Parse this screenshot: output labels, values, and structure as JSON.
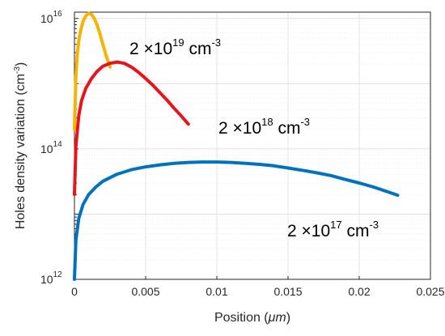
{
  "chart_data": {
    "type": "line",
    "xlabel_prefix": "Position (",
    "xlabel_unit": "μm",
    "xlabel_suffix": ")",
    "ylabel_main": "Holes density variation (cm",
    "ylabel_exp": "-3",
    "ylabel_end": ")",
    "xlim": [
      0,
      0.025
    ],
    "ylim": [
      1000000000000.0,
      1.25e+16
    ],
    "yscale": "log",
    "grid": true,
    "x_ticks": [
      {
        "value": 0,
        "label": "0"
      },
      {
        "value": 0.005,
        "label": "0.005"
      },
      {
        "value": 0.01,
        "label": "0.01"
      },
      {
        "value": 0.015,
        "label": "0.015"
      },
      {
        "value": 0.02,
        "label": "0.02"
      },
      {
        "value": 0.025,
        "label": "0.025"
      }
    ],
    "y_ticks": [
      {
        "value": 1000000000000.0,
        "base": "10",
        "exp": "12"
      },
      {
        "value": 100000000000000.0,
        "base": "10",
        "exp": "14"
      },
      {
        "value": 1e+16,
        "base": "10",
        "exp": "16"
      }
    ],
    "series": [
      {
        "color": "#F5B400",
        "x": [
          0,
          0.0001,
          0.0002,
          0.0003,
          0.0004,
          0.0006,
          0.0008,
          0.001,
          0.0012,
          0.0014,
          0.0016,
          0.0018,
          0.002,
          0.0022,
          0.0024,
          0.0025
        ],
        "y": [
          200000000000000.0,
          1300000000000000.0,
          2800000000000000.0,
          4500000000000000.0,
          6000000000000000.0,
          9000000000000000.0,
          1.1e+16,
          1.2e+16,
          1.15e+16,
          1e+16,
          7800000000000000.0,
          5700000000000000.0,
          4000000000000000.0,
          2800000000000000.0,
          2100000000000000.0,
          1800000000000000.0
        ]
      },
      {
        "color": "#E8141C",
        "x": [
          0,
          0.0001,
          0.0003,
          0.0005,
          0.0008,
          0.0012,
          0.0016,
          0.002,
          0.0025,
          0.003,
          0.0035,
          0.004,
          0.0045,
          0.005,
          0.0055,
          0.006,
          0.0065,
          0.007,
          0.0075,
          0.008
        ],
        "y": [
          20000000000000.0,
          110000000000000.0,
          320000000000000.0,
          550000000000000.0,
          850000000000000.0,
          1200000000000000.0,
          1550000000000000.0,
          1850000000000000.0,
          2050000000000000.0,
          2150000000000000.0,
          2050000000000000.0,
          1800000000000000.0,
          1500000000000000.0,
          1200000000000000.0,
          950000000000000.0,
          730000000000000.0,
          560000000000000.0,
          420000000000000.0,
          320000000000000.0,
          240000000000000.0
        ]
      },
      {
        "color": "#0072BD",
        "x": [
          0,
          0.0001,
          0.0003,
          0.0006,
          0.001,
          0.0015,
          0.002,
          0.003,
          0.004,
          0.005,
          0.006,
          0.007,
          0.008,
          0.009,
          0.01,
          0.011,
          0.012,
          0.013,
          0.014,
          0.015,
          0.016,
          0.017,
          0.018,
          0.019,
          0.02,
          0.021,
          0.022,
          0.0227
        ],
        "y": [
          1000000000000.0,
          4000000000000.0,
          8500000000000.0,
          14000000000000.0,
          20000000000000.0,
          26000000000000.0,
          32000000000000.0,
          41000000000000.0,
          48000000000000.0,
          53000000000000.0,
          57000000000000.0,
          60000000000000.0,
          62000000000000.0,
          63000000000000.0,
          63000000000000.0,
          62000000000000.0,
          60000000000000.0,
          58000000000000.0,
          55000000000000.0,
          51000000000000.0,
          47000000000000.0,
          43000000000000.0,
          39000000000000.0,
          34000000000000.0,
          30000000000000.0,
          26000000000000.0,
          22000000000000.0,
          19500000000000.0
        ]
      }
    ],
    "annotations": [
      {
        "name": "annotation-2e19",
        "prefix": "2 ×10",
        "exp": "19",
        "suffix": " cm",
        "unit_exp": "-3"
      },
      {
        "name": "annotation-2e18",
        "prefix": "2 ×10",
        "exp": "18",
        "suffix": " cm",
        "unit_exp": "-3"
      },
      {
        "name": "annotation-2e17",
        "prefix": "2 ×10",
        "exp": "17",
        "suffix": " cm",
        "unit_exp": "-3"
      }
    ]
  }
}
